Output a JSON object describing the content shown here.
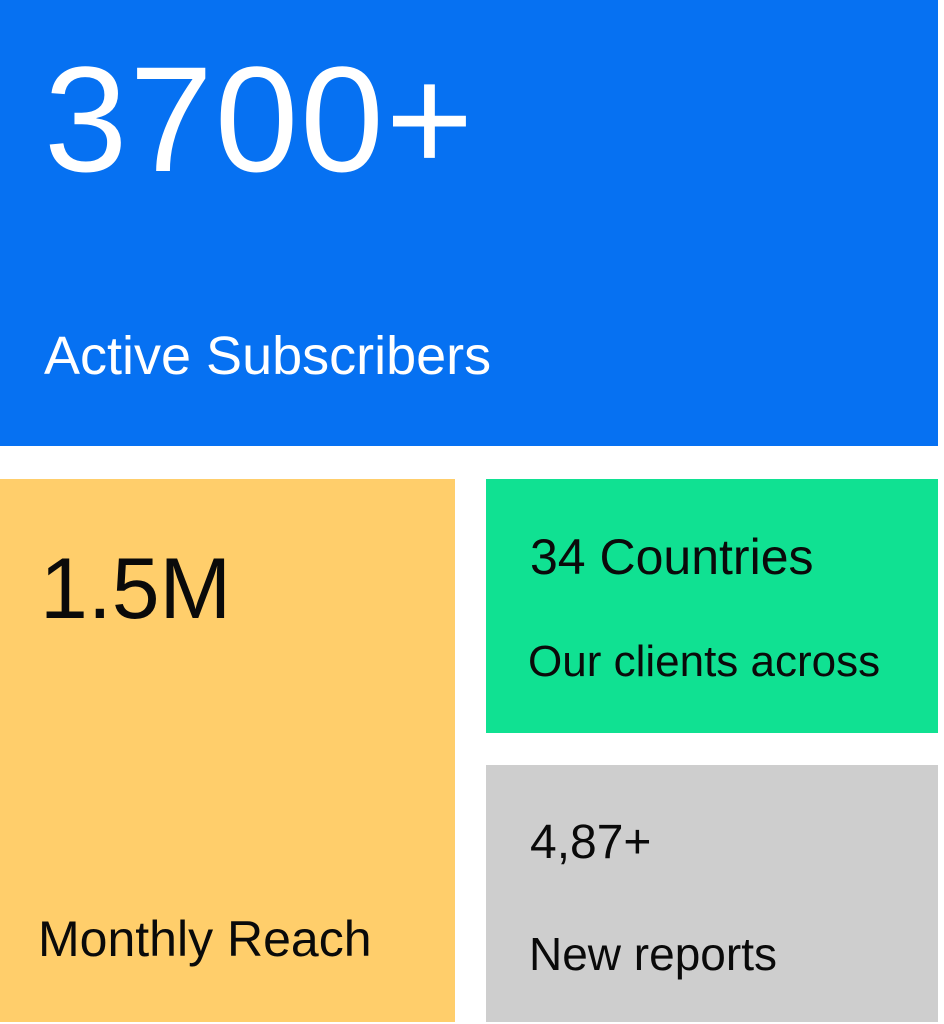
{
  "page": {
    "background_color": "#FFFFFF",
    "text_dark_color": "#0A0A0A",
    "text_light_color": "#FFFFFF"
  },
  "tiles": {
    "subscribers": {
      "value": "3700+",
      "label": "Active Subscribers",
      "bg": "#0671F2",
      "text_color": "#FFFFFF"
    },
    "reach": {
      "value": "1.5M",
      "label": "Monthly Reach",
      "bg": "#FFCE6B",
      "text_color": "#0A0A0A"
    },
    "countries": {
      "value": "34 Countries",
      "label": "Our clients across",
      "bg": "#10E192",
      "text_color": "#0A0A0A"
    },
    "reports": {
      "value": "4,87+",
      "label": "New reports",
      "bg": "#CECECE",
      "text_color": "#0A0A0A"
    }
  }
}
